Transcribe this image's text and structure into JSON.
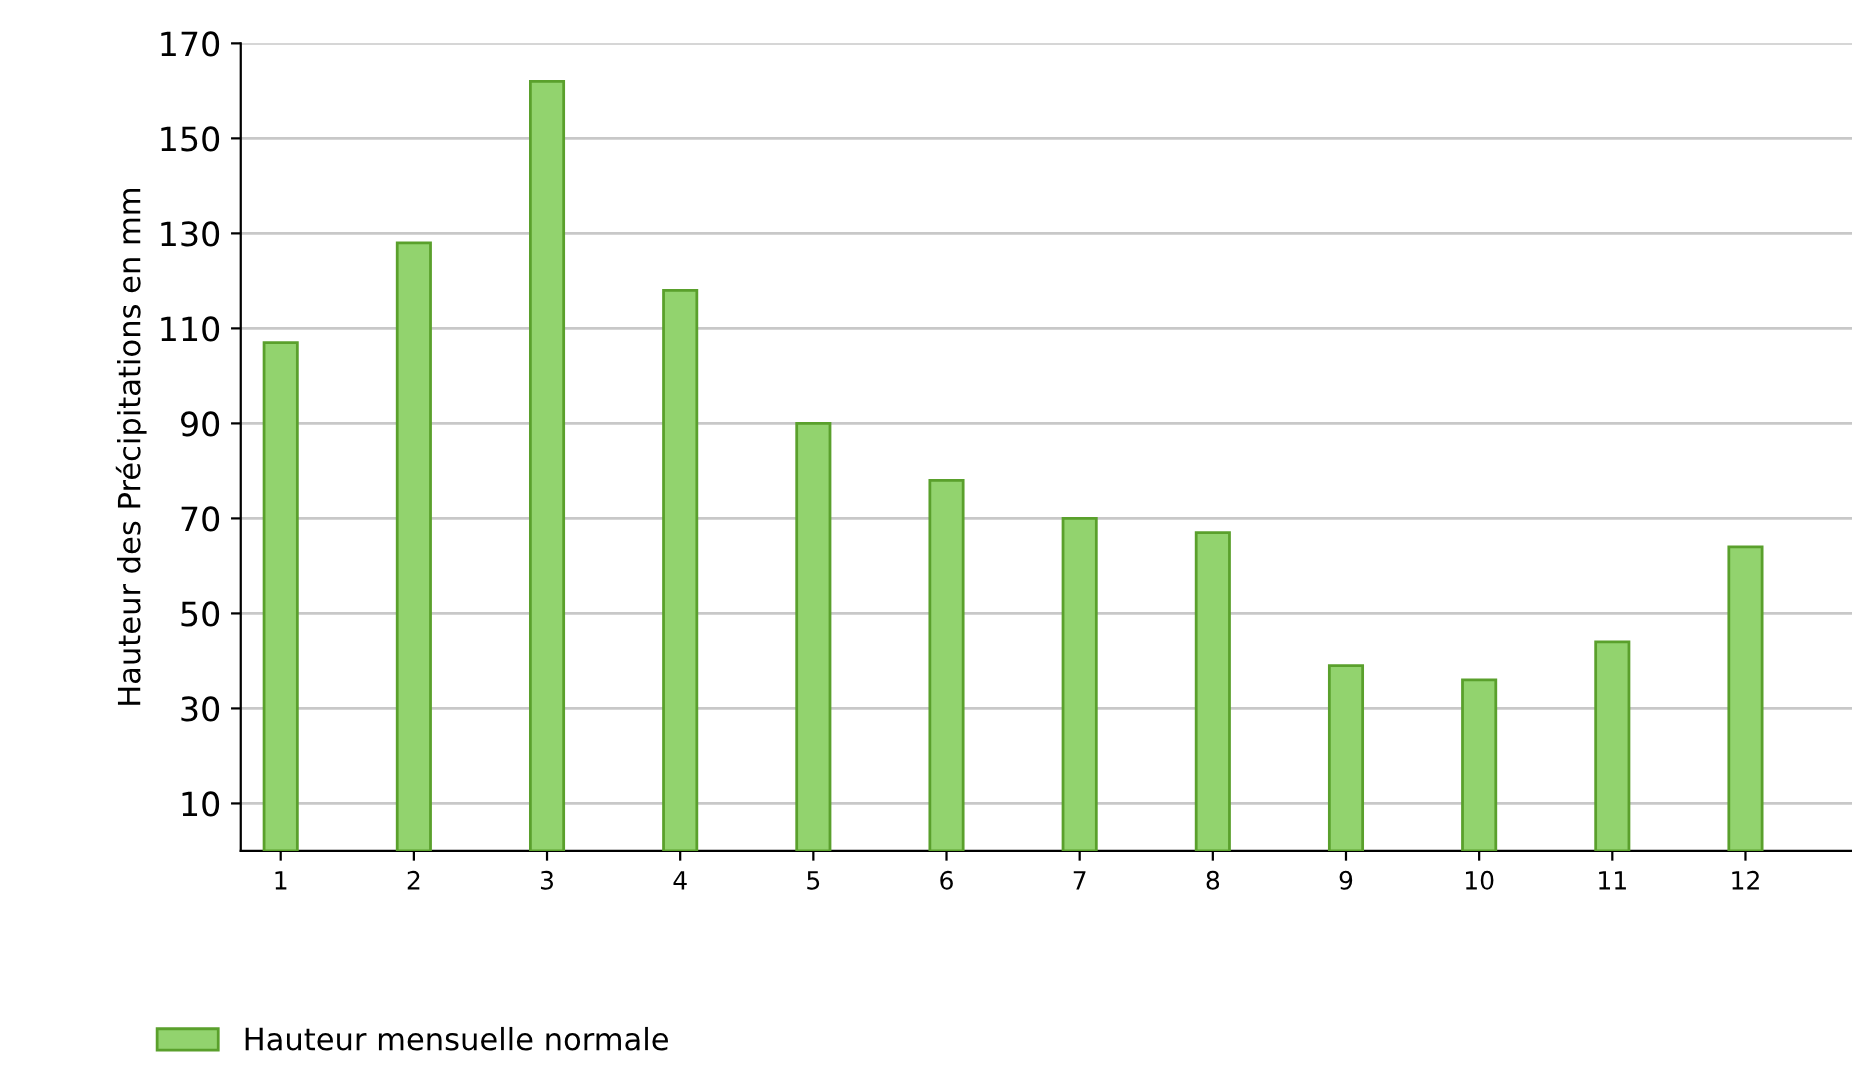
{
  "chart_data": {
    "type": "bar",
    "ylabel": "Hauteur des Précipitations en mm",
    "categories": [
      "1",
      "2",
      "3",
      "4",
      "5",
      "6",
      "7",
      "8",
      "9",
      "10",
      "11",
      "12"
    ],
    "series": [
      {
        "name": "Hauteur mensuelle normale",
        "color": "#92d36e",
        "values": [
          107,
          128,
          162,
          118,
          90,
          78,
          70,
          67,
          39,
          36,
          44,
          64
        ]
      }
    ],
    "ylim": [
      0,
      170
    ],
    "yticks": [
      10,
      30,
      50,
      70,
      90,
      110,
      130,
      150,
      170
    ],
    "grid": "y",
    "legend": "bottom left"
  }
}
